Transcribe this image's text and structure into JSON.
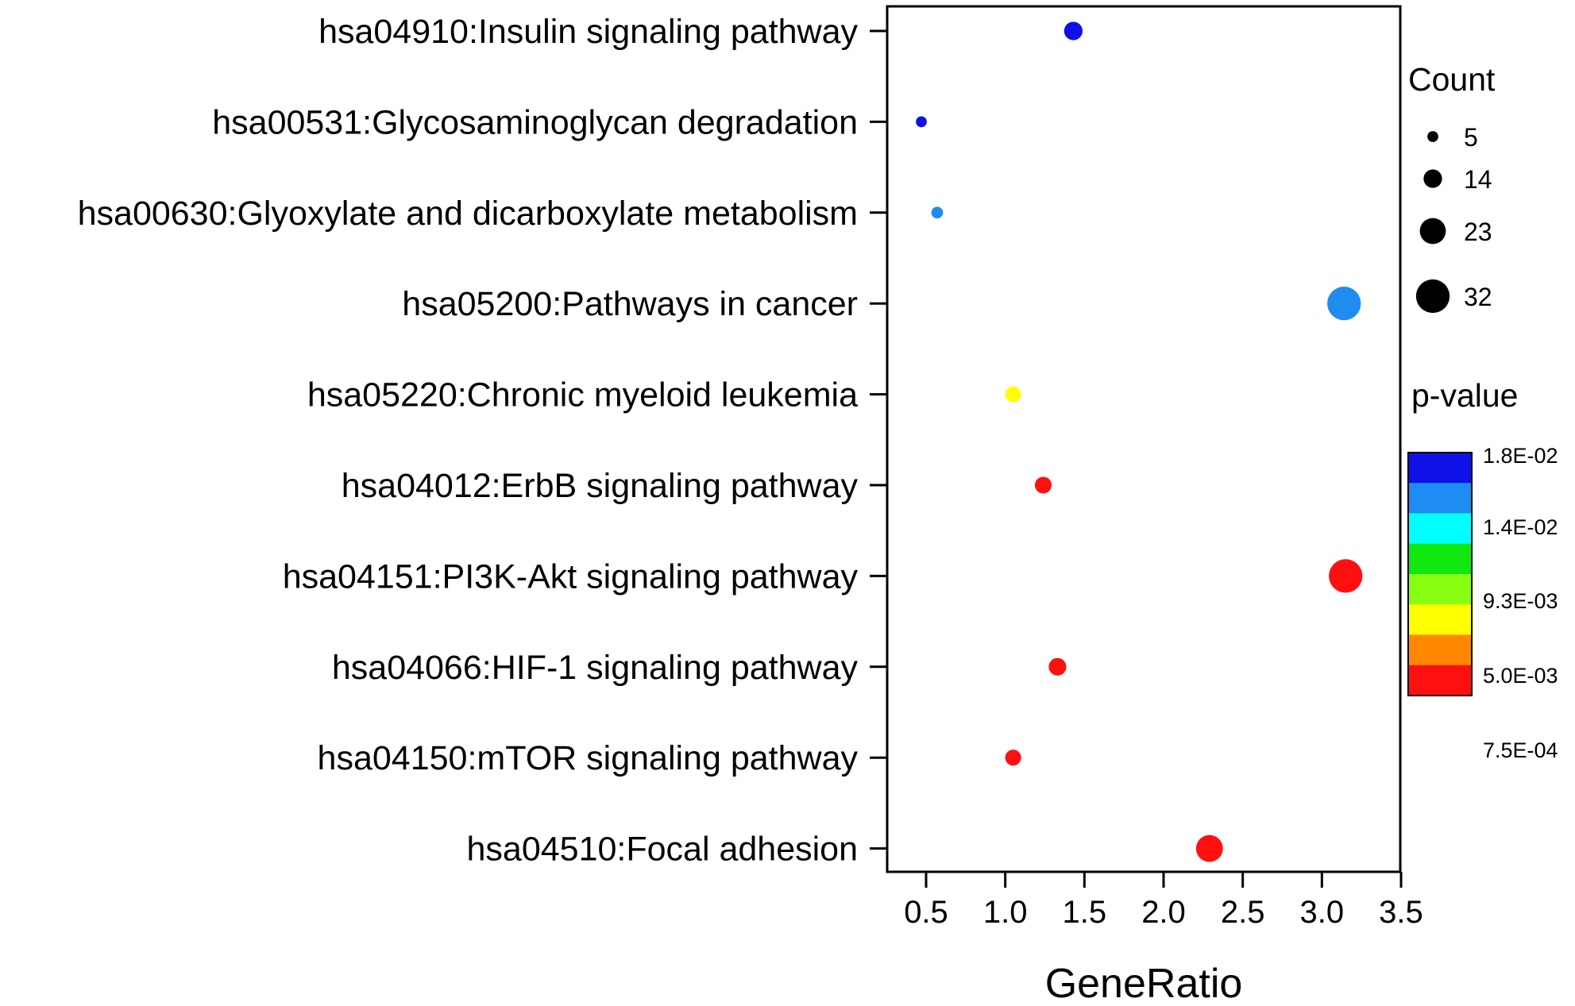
{
  "chart_data": {
    "type": "scatter",
    "xlabel": "GeneRatio",
    "ylabel": "",
    "xlim": [
      0.25,
      3.5
    ],
    "xticks": [
      "0.5",
      "1.0",
      "1.5",
      "2.0",
      "2.5",
      "3.0",
      "3.5"
    ],
    "xtick_values": [
      0.5,
      1.0,
      1.5,
      2.0,
      2.5,
      3.0,
      3.5
    ],
    "categories": [
      "hsa04910:Insulin signaling pathway",
      "hsa00531:Glycosaminoglycan degradation",
      "hsa00630:Glyoxylate and dicarboxylate metabolism",
      "hsa05200:Pathways in cancer",
      "hsa05220:Chronic myeloid leukemia",
      "hsa04012:ErbB signaling pathway",
      "hsa04151:PI3K-Akt signaling pathway",
      "hsa04066:HIF-1 signaling pathway",
      "hsa04150:mTOR signaling pathway",
      "hsa04510:Focal adhesion"
    ],
    "points": [
      {
        "category": "hsa04910:Insulin signaling pathway",
        "gene_ratio": 1.43,
        "count": 14,
        "color": "#1010e8"
      },
      {
        "category": "hsa00531:Glycosaminoglycan degradation",
        "gene_ratio": 0.47,
        "count": 5,
        "color": "#1010e8"
      },
      {
        "category": "hsa00630:Glyoxylate and dicarboxylate metabolism",
        "gene_ratio": 0.57,
        "count": 6,
        "color": "#1e8cf0"
      },
      {
        "category": "hsa05200:Pathways in cancer",
        "gene_ratio": 3.14,
        "count": 32,
        "color": "#1e8cf0"
      },
      {
        "category": "hsa05220:Chronic myeloid leukemia",
        "gene_ratio": 1.05,
        "count": 11,
        "color": "#ffff00"
      },
      {
        "category": "hsa04012:ErbB signaling pathway",
        "gene_ratio": 1.24,
        "count": 12,
        "color": "#ff1010"
      },
      {
        "category": "hsa04151:PI3K-Akt signaling pathway",
        "gene_ratio": 3.15,
        "count": 32,
        "color": "#ff1010"
      },
      {
        "category": "hsa04066:HIF-1 signaling pathway",
        "gene_ratio": 1.33,
        "count": 13,
        "color": "#ff1010"
      },
      {
        "category": "hsa04150:mTOR signaling pathway",
        "gene_ratio": 1.05,
        "count": 11,
        "color": "#ff1010"
      },
      {
        "category": "hsa04510:Focal adhesion",
        "gene_ratio": 2.29,
        "count": 24,
        "color": "#ff1010"
      }
    ],
    "size_legend": {
      "title": "Count",
      "entries": [
        {
          "label": "5",
          "value": 5
        },
        {
          "label": "14",
          "value": 14
        },
        {
          "label": "23",
          "value": 23
        },
        {
          "label": "32",
          "value": 32
        }
      ]
    },
    "color_legend": {
      "title": "p-value",
      "colors": [
        "#1010e8",
        "#1e8cf0",
        "#00ffff",
        "#10e810",
        "#88ff10",
        "#ffff00",
        "#ff8800",
        "#ff1010"
      ],
      "labels": [
        "1.8E-02",
        "1.4E-02",
        "9.3E-03",
        "5.0E-03",
        "7.5E-04"
      ]
    },
    "grid": false,
    "legend_placement": "right"
  }
}
